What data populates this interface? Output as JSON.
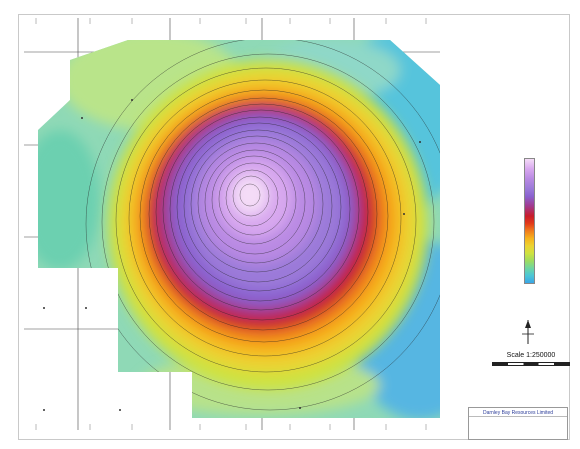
{
  "map": {
    "scale_label": "Scale 1:250000"
  },
  "title_block": {
    "company": "Darnley Bay Resources Limited"
  },
  "colors": {
    "high": "#f4dcf7",
    "purple": "#9b7ad9",
    "red": "#c81c2a",
    "orange": "#f07c1c",
    "yellow": "#ecd232",
    "green": "#9fdc5e",
    "cyan": "#4cc6d6",
    "low": "#3aa6e6"
  }
}
